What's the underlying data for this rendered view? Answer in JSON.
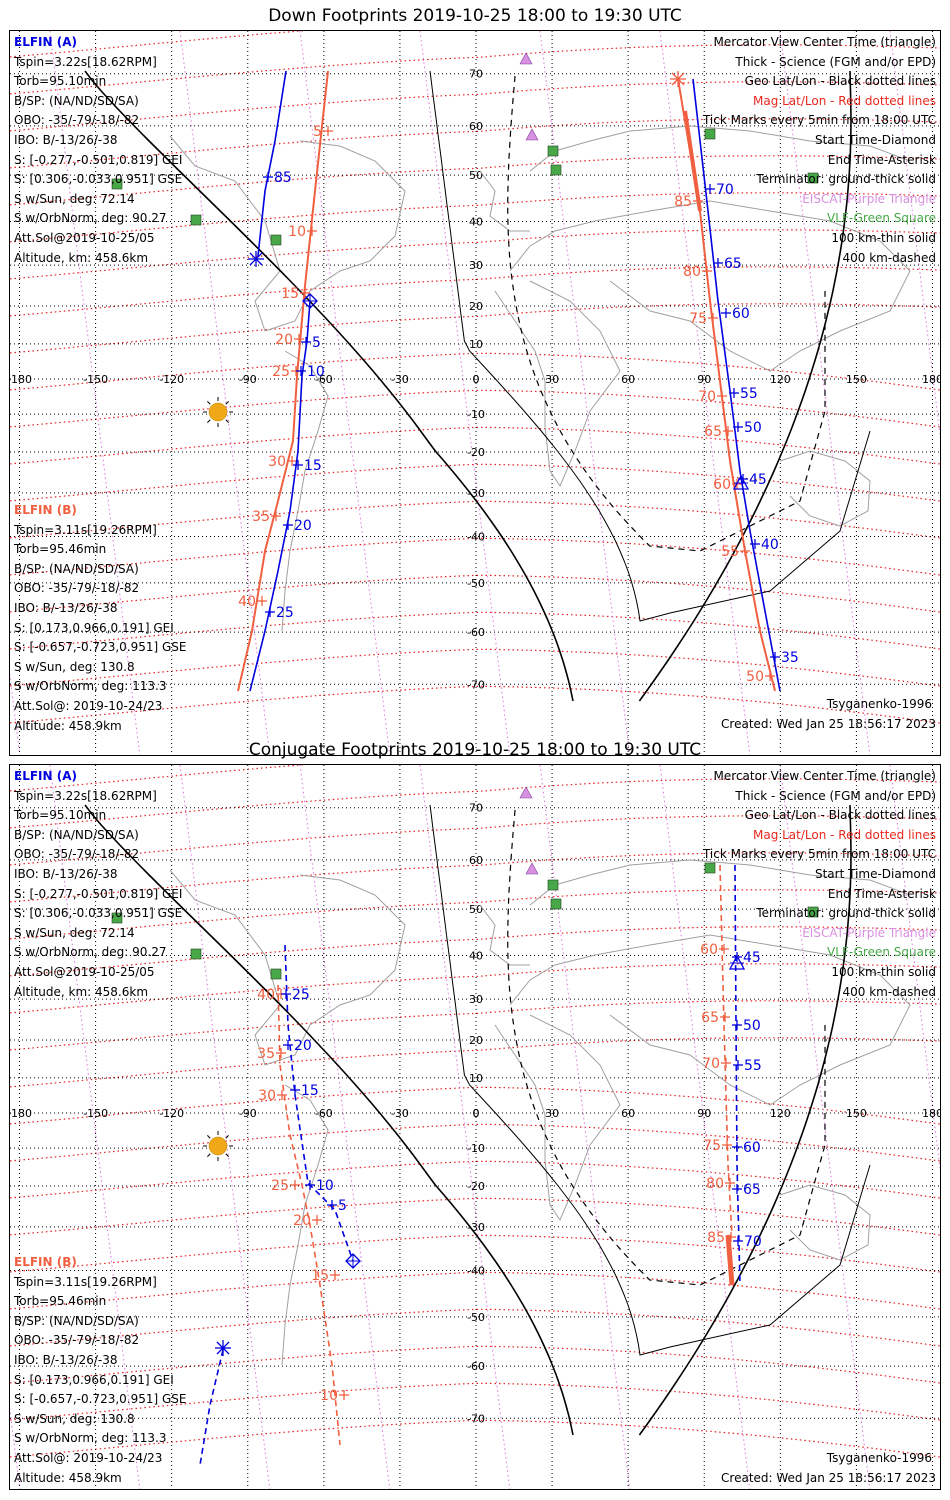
{
  "panels": [
    {
      "title": "Down Footprints 2019-10-25 18:00 to 19:30 UTC",
      "elfin_a": {
        "header": "ELFIN (A)",
        "lines": [
          "Tspin=3.22s[18.62RPM]",
          "Torb=95.10min",
          "B/SP: (NA/ND/SD/SA)",
          "OBO: -35/-79/-18/-82",
          "IBO: B/-13/26/-38",
          "S: [-0.277,-0.501,0.819] GEI",
          "S: [0.306,-0.033,0.951] GSE",
          "S w/Sun, deg: 72.14",
          "S w/OrbNorm, deg: 90.27",
          "Att.Sol@2019-10-25/05",
          "Altitude, km: 458.6km"
        ]
      },
      "elfin_b": {
        "header": "ELFIN (B)",
        "lines": [
          "Tspin=3.11s[19.26RPM]",
          "Torb=95.46min",
          "B/SP: (NA/ND/SD/SA)",
          "OBO: -35/-79/-18/-82",
          "IBO: B/-13/26/-38",
          "S: [0.173,0.966,0.191] GEI",
          "S: [-0.657,-0.723,0.951] GSE",
          "S w/Sun, deg: 130.8",
          "S w/OrbNorm, deg: 113.3",
          "Att.Sol@: 2019-10-24/23",
          "Altitude: 458.9km"
        ]
      },
      "legend": [
        {
          "text": "Mercator View Center Time (triangle)",
          "color": "#000000"
        },
        {
          "text": "Thick - Science (FGM and/or EPD)",
          "color": "#000000"
        },
        {
          "text": "Geo Lat/Lon - Black dotted lines",
          "color": "#000000"
        },
        {
          "text": "Mag Lat/Lon - Red dotted lines",
          "color": "#e8281e"
        },
        {
          "text": "Tick Marks every 5min from 18:00 UTC",
          "color": "#000000"
        },
        {
          "text": "Start Time-Diamond",
          "color": "#000000"
        },
        {
          "text": "End Time-Asterisk",
          "color": "#000000"
        },
        {
          "text": "Terminator: ground-thick solid",
          "color": "#000000"
        },
        {
          "text": "EISCAT-Purple Triangle",
          "color": "#d890e0"
        },
        {
          "text": "VLF-Green Square",
          "color": "#48a848"
        },
        {
          "text": "100 km-thin solid",
          "color": "#000000"
        },
        {
          "text": "400 km-dashed",
          "color": "#000000"
        }
      ],
      "model": "Tsyganenko-1996",
      "created": "Created: Wed Jan 25 18:56:17 2023",
      "lon_labels": [
        "-180",
        "-150",
        "-120",
        "-90",
        "-60",
        "-30",
        "0",
        "30",
        "60",
        "90",
        "120",
        "150",
        "180"
      ],
      "lat_labels": [
        "70",
        "60",
        "50",
        "40",
        "30",
        "20",
        "10",
        "0",
        "-10",
        "-20",
        "-30",
        "-40",
        "-50",
        "-60",
        "-70"
      ],
      "track_a_ticks": [
        "85",
        "5",
        "10",
        "15",
        "20",
        "25"
      ],
      "track_b_ticks": [
        "5",
        "10",
        "15",
        "20",
        "25",
        "30",
        "35",
        "40"
      ],
      "track_a_east_ticks": [
        "70",
        "65",
        "60",
        "55",
        "50",
        "45",
        "40",
        "35"
      ],
      "track_b_east_ticks": [
        "85",
        "80",
        "75",
        "70",
        "65",
        "60",
        "55",
        "50"
      ]
    },
    {
      "title": "Conjugate Footprints 2019-10-25 18:00 to 19:30 UTC",
      "elfin_a": {
        "header": "ELFIN (A)",
        "lines": [
          "Tspin=3.22s[18.62RPM]",
          "Torb=95.10min",
          "B/SP: (NA/ND/SD/SA)",
          "OBO: -35/-79/-18/-82",
          "IBO: B/-13/26/-38",
          "S: [-0.277,-0.501,0.819] GEI",
          "S: [0.306,-0.033,0.951] GSE",
          "S w/Sun, deg: 72.14",
          "S w/OrbNorm, deg: 90.27",
          "Att.Sol@2019-10-25/05",
          "Altitude, km: 458.6km"
        ]
      },
      "elfin_b": {
        "header": "ELFIN (B)",
        "lines": [
          "Tspin=3.11s[19.26RPM]",
          "Torb=95.46min",
          "B/SP: (NA/ND/SD/SA)",
          "OBO: -35/-79/-18/-82",
          "IBO: B/-13/26/-38",
          "S: [0.173,0.966,0.191] GEI",
          "S: [-0.657,-0.723,0.951] GSE",
          "S w/Sun, deg: 130.8",
          "S w/OrbNorm, deg: 113.3",
          "Att.Sol@: 2019-10-24/23",
          "Altitude: 458.9km"
        ]
      },
      "legend": [
        {
          "text": "Mercator View Center Time (triangle)",
          "color": "#000000"
        },
        {
          "text": "Thick - Science (FGM and/or EPD)",
          "color": "#000000"
        },
        {
          "text": "Geo Lat/Lon - Black dotted lines",
          "color": "#000000"
        },
        {
          "text": "Mag Lat/Lon - Red dotted lines",
          "color": "#e8281e"
        },
        {
          "text": "Tick Marks every 5min from 18:00 UTC",
          "color": "#000000"
        },
        {
          "text": "Start Time-Diamond",
          "color": "#000000"
        },
        {
          "text": "End Time-Asterisk",
          "color": "#000000"
        },
        {
          "text": "Terminator: ground-thick solid",
          "color": "#000000"
        },
        {
          "text": "EISCAT-Purple Triangle",
          "color": "#d890e0"
        },
        {
          "text": "VLF-Green Square",
          "color": "#48a848"
        },
        {
          "text": "100 km-thin solid",
          "color": "#000000"
        },
        {
          "text": "400 km-dashed",
          "color": "#000000"
        }
      ],
      "model": "Tsyganenko-1996",
      "created": "Created: Wed Jan 25 18:56:17 2023",
      "lon_labels": [
        "-180",
        "-150",
        "-120",
        "-90",
        "-60",
        "-30",
        "0",
        "30",
        "60",
        "90",
        "120",
        "150",
        "180"
      ],
      "lat_labels": [
        "70",
        "60",
        "50",
        "40",
        "30",
        "20",
        "10",
        "0",
        "-10",
        "-20",
        "-30",
        "-40",
        "-50",
        "-60",
        "-70"
      ],
      "track_a_ticks": [
        "25",
        "20",
        "15",
        "10",
        "5"
      ],
      "track_b_ticks": [
        "40",
        "35",
        "30",
        "25",
        "20",
        "15",
        "10"
      ],
      "track_a_east_ticks": [
        "45",
        "50",
        "55",
        "60",
        "65",
        "70"
      ],
      "track_b_east_ticks": [
        "60",
        "65",
        "70",
        "75",
        "80",
        "85"
      ]
    }
  ],
  "colors": {
    "elfin_a": "#0000e0",
    "elfin_b": "#f06040",
    "mag_grid": "#e82020",
    "geo_grid": "#000000",
    "coast": "#a0a0a0",
    "eiscat": "#d890e0",
    "vlf": "#48a848",
    "sun": "#f0a818"
  }
}
